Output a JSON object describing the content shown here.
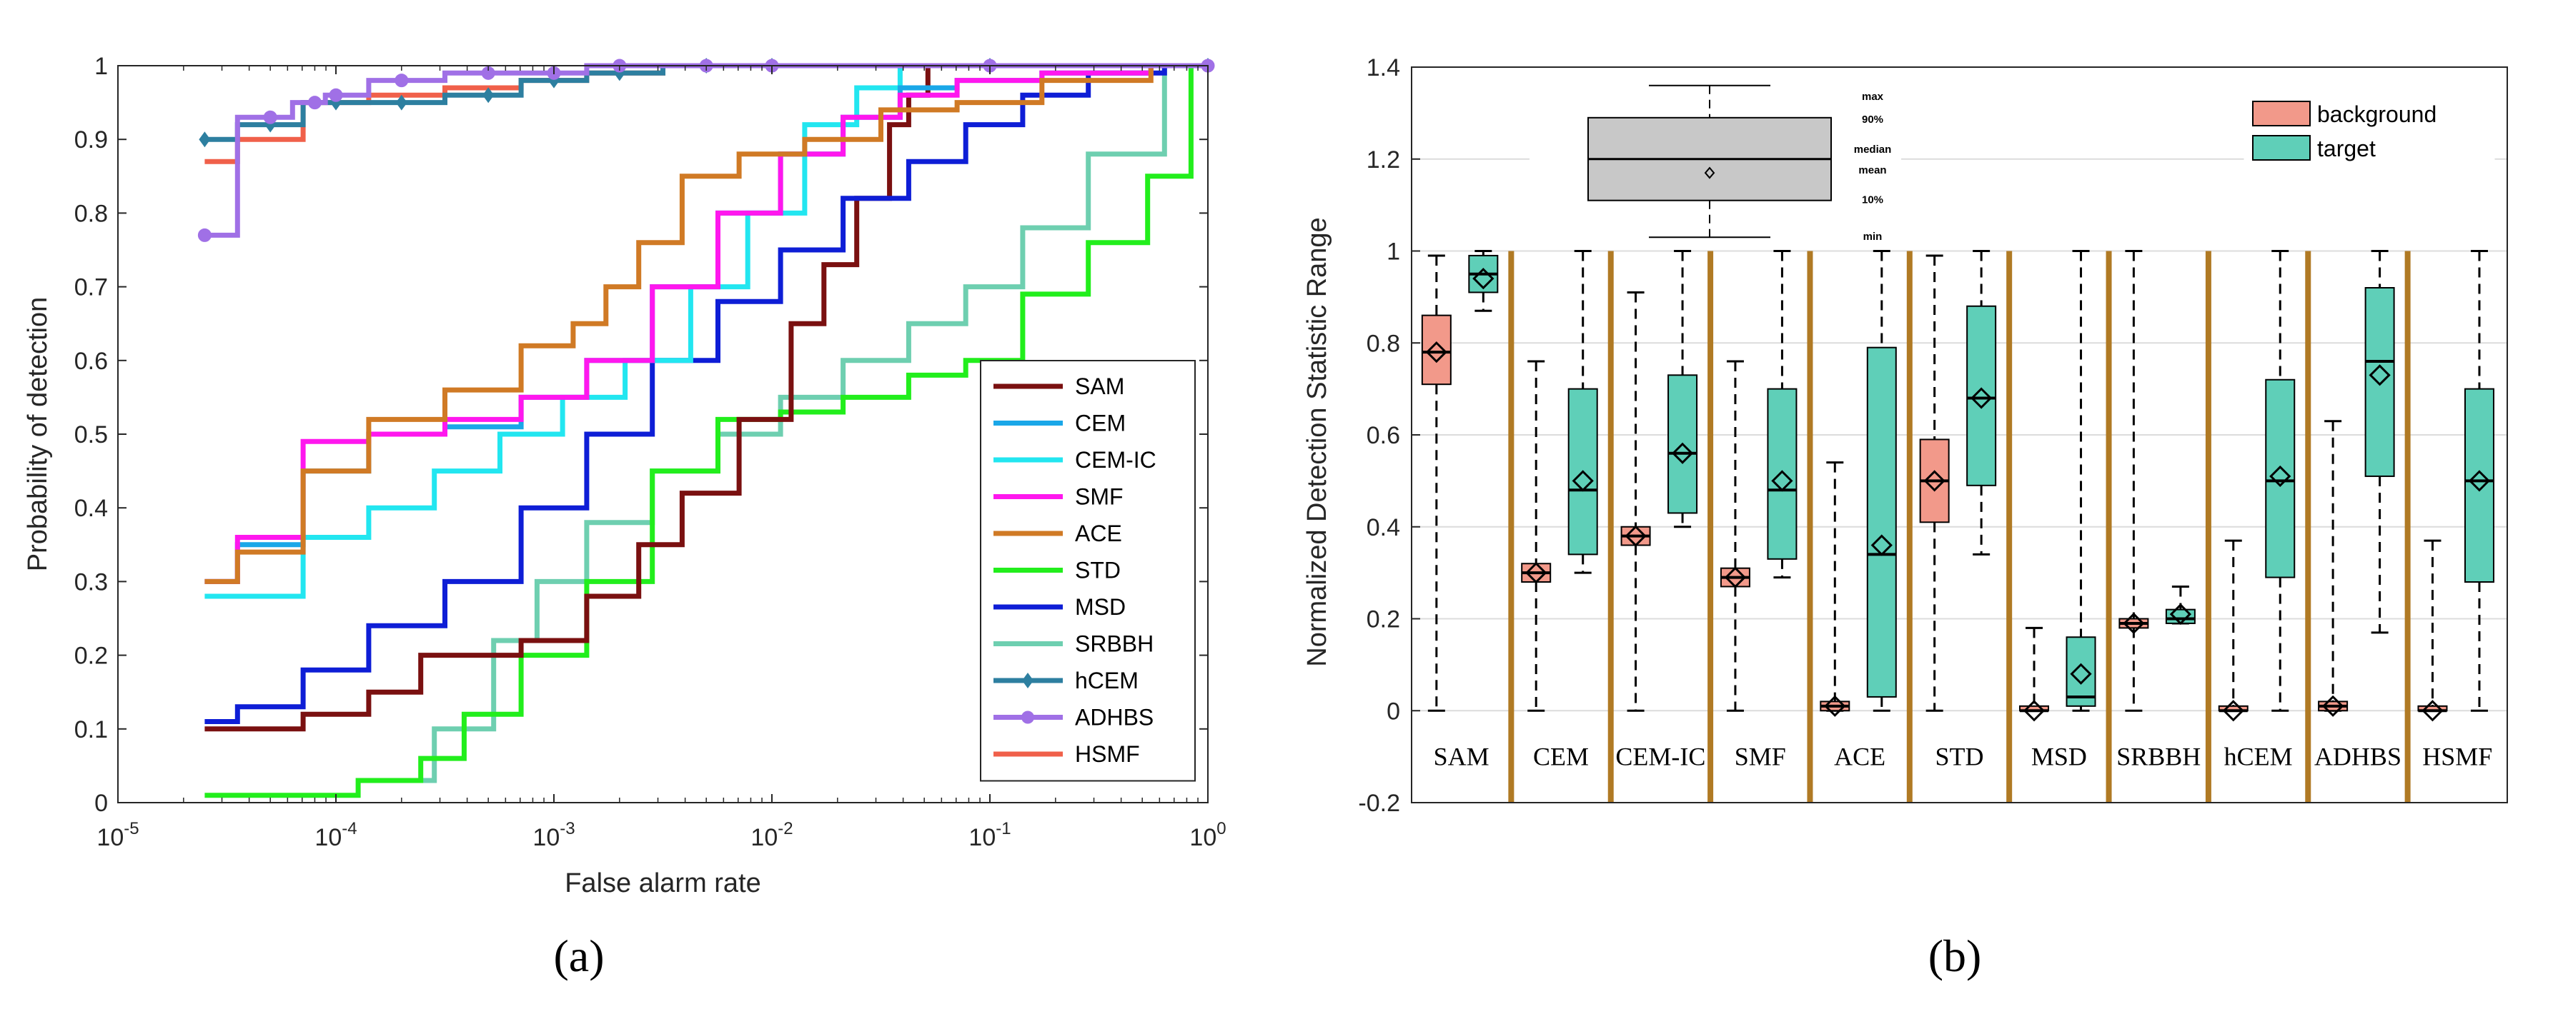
{
  "panel_labels": [
    "(a)",
    "(b)"
  ],
  "chart_data": [
    {
      "type": "line",
      "panel": "(a)",
      "xscale": "log",
      "xlabel": "False alarm rate",
      "ylabel": "Probability of detection",
      "xlim": [
        1e-05,
        1
      ],
      "ylim": [
        0,
        1
      ],
      "x_ticks": [
        1e-05,
        0.0001,
        0.001,
        0.01,
        0.1,
        1
      ],
      "x_tick_bases": [
        "10",
        "10",
        "10",
        "10",
        "10",
        "10"
      ],
      "x_tick_exps": [
        "-5",
        "-4",
        "-3",
        "-2",
        "-1",
        "0"
      ],
      "y_ticks": [
        0,
        0.1,
        0.2,
        0.3,
        0.4,
        0.5,
        0.6,
        0.7,
        0.8,
        0.9,
        1
      ],
      "y_tick_labels": [
        "0",
        "0.1",
        "0.2",
        "0.3",
        "0.4",
        "0.5",
        "0.6",
        "0.7",
        "0.8",
        "0.9",
        "1"
      ],
      "legend_position": "bottom-right",
      "series": [
        {
          "name": "SAM",
          "color": "#7a1010",
          "marker": "none",
          "x": [
            2.5e-05,
            5e-05,
            0.0001,
            0.0002,
            0.0003,
            0.0005,
            0.001,
            0.002,
            0.003,
            0.005,
            0.01,
            0.015,
            0.02,
            0.03,
            0.04,
            0.045,
            0.06,
            1
          ],
          "y": [
            0.1,
            0.1,
            0.12,
            0.15,
            0.2,
            0.2,
            0.22,
            0.28,
            0.35,
            0.42,
            0.52,
            0.65,
            0.73,
            0.82,
            0.92,
            0.96,
            1.0,
            1.0
          ]
        },
        {
          "name": "CEM",
          "color": "#1aa7e8",
          "marker": "none",
          "x": [
            2.5e-05,
            5e-05,
            0.0001,
            0.0002,
            0.0005,
            0.001,
            0.002,
            0.004,
            0.008,
            0.015,
            0.03,
            0.05,
            0.1,
            0.3,
            1
          ],
          "y": [
            0.3,
            0.35,
            0.45,
            0.5,
            0.51,
            0.55,
            0.6,
            0.7,
            0.8,
            0.88,
            0.93,
            0.97,
            0.98,
            0.99,
            1.0
          ]
        },
        {
          "name": "CEM-IC",
          "color": "#22e6f0",
          "marker": "none",
          "x": [
            2.5e-05,
            5e-05,
            0.0001,
            0.0002,
            0.0004,
            0.0008,
            0.0015,
            0.003,
            0.006,
            0.01,
            0.02,
            0.03,
            0.05,
            0.1,
            0.3,
            1
          ],
          "y": [
            0.28,
            0.28,
            0.36,
            0.4,
            0.45,
            0.5,
            0.55,
            0.6,
            0.7,
            0.8,
            0.92,
            0.97,
            1.0,
            1.0,
            1.0,
            1.0
          ]
        },
        {
          "name": "SMF",
          "color": "#ff17ee",
          "marker": "none",
          "x": [
            2.5e-05,
            5e-05,
            0.0001,
            0.0002,
            0.0005,
            0.001,
            0.002,
            0.004,
            0.008,
            0.015,
            0.03,
            0.05,
            0.1,
            0.3,
            1
          ],
          "y": [
            0.3,
            0.36,
            0.49,
            0.5,
            0.52,
            0.55,
            0.6,
            0.7,
            0.8,
            0.88,
            0.93,
            0.96,
            0.98,
            0.99,
            1.0
          ]
        },
        {
          "name": "ACE",
          "color": "#d07a25",
          "marker": "none",
          "x": [
            2.5e-05,
            5e-05,
            0.0001,
            0.0002,
            0.0005,
            0.001,
            0.0015,
            0.002,
            0.003,
            0.005,
            0.01,
            0.02,
            0.05,
            0.1,
            0.3,
            1
          ],
          "y": [
            0.3,
            0.34,
            0.45,
            0.52,
            0.56,
            0.62,
            0.65,
            0.7,
            0.76,
            0.85,
            0.88,
            0.9,
            0.94,
            0.95,
            0.98,
            1.0
          ]
        },
        {
          "name": "STD",
          "color": "#22ee1c",
          "marker": "none",
          "x": [
            2.5e-05,
            8e-05,
            0.0002,
            0.0003,
            0.0005,
            0.001,
            0.002,
            0.004,
            0.008,
            0.015,
            0.03,
            0.06,
            0.1,
            0.2,
            0.4,
            0.7,
            1
          ],
          "y": [
            0.01,
            0.01,
            0.03,
            0.06,
            0.12,
            0.2,
            0.3,
            0.45,
            0.52,
            0.53,
            0.55,
            0.58,
            0.6,
            0.69,
            0.76,
            0.85,
            1.0
          ]
        },
        {
          "name": "MSD",
          "color": "#0e1ed6",
          "marker": "none",
          "x": [
            2.5e-05,
            5e-05,
            0.0001,
            0.0002,
            0.0005,
            0.001,
            0.002,
            0.004,
            0.008,
            0.015,
            0.03,
            0.06,
            0.1,
            0.2,
            0.4,
            1
          ],
          "y": [
            0.11,
            0.13,
            0.18,
            0.24,
            0.3,
            0.4,
            0.5,
            0.6,
            0.68,
            0.75,
            0.82,
            0.87,
            0.92,
            0.96,
            0.99,
            1.0
          ]
        },
        {
          "name": "SRBBH",
          "color": "#6ecfb0",
          "marker": "none",
          "x": [
            0.0002,
            0.0004,
            0.0007,
            0.001,
            0.002,
            0.004,
            0.008,
            0.015,
            0.03,
            0.06,
            0.1,
            0.2,
            0.4,
            1
          ],
          "y": [
            0.03,
            0.1,
            0.22,
            0.3,
            0.38,
            0.45,
            0.5,
            0.55,
            0.6,
            0.65,
            0.7,
            0.78,
            0.88,
            1.0
          ]
        },
        {
          "name": "hCEM",
          "color": "#2d7fa0",
          "marker": "diamond",
          "x": [
            2.5e-05,
            5e-05,
            0.0001,
            0.0002,
            0.0005,
            0.001,
            0.002,
            0.005,
            0.01,
            0.1,
            1
          ],
          "y": [
            0.9,
            0.92,
            0.95,
            0.95,
            0.96,
            0.98,
            0.99,
            1.0,
            1.0,
            1.0,
            1.0
          ]
        },
        {
          "name": "ADHBS",
          "color": "#a070e6",
          "marker": "circle",
          "x": [
            2.5e-05,
            5e-05,
            8e-05,
            0.0001,
            0.0002,
            0.0005,
            0.001,
            0.002,
            0.005,
            0.01,
            0.1,
            1
          ],
          "y": [
            0.77,
            0.93,
            0.95,
            0.96,
            0.98,
            0.99,
            0.99,
            1.0,
            1.0,
            1.0,
            1.0,
            1.0
          ]
        },
        {
          "name": "HSMF",
          "color": "#f0604a",
          "marker": "none",
          "x": [
            2.5e-05,
            5e-05,
            0.0001,
            0.0002,
            0.0005,
            0.001,
            0.002,
            0.005,
            0.01,
            0.1,
            1
          ],
          "y": [
            0.87,
            0.9,
            0.95,
            0.96,
            0.97,
            0.98,
            0.99,
            1.0,
            1.0,
            1.0,
            1.0
          ]
        }
      ]
    },
    {
      "type": "box",
      "panel": "(b)",
      "ylabel": "Normalized Detection Statistic Range",
      "ylim": [
        -0.2,
        1.4
      ],
      "y_ticks": [
        -0.2,
        0,
        0.2,
        0.4,
        0.6,
        0.8,
        1,
        1.2,
        1.4
      ],
      "y_tick_labels": [
        "-0.2",
        "0",
        "0.2",
        "0.4",
        "0.6",
        "0.8",
        "1",
        "1.2",
        "1.4"
      ],
      "grid": true,
      "legend_position": "top-right",
      "legend": [
        {
          "name": "background",
          "color": "#f2998a"
        },
        {
          "name": "target",
          "color": "#5fcfb8"
        }
      ],
      "key_labels": [
        "max",
        "90%",
        "median",
        "mean",
        "10%",
        "min"
      ],
      "key_stats": {
        "min": 1.03,
        "q10": 1.11,
        "median": 1.2,
        "mean": 1.17,
        "q90": 1.29,
        "max": 1.36
      },
      "categories": [
        "SAM",
        "CEM",
        "CEM-IC",
        "SMF",
        "ACE",
        "STD",
        "MSD",
        "SRBBH",
        "hCEM",
        "ADHBS",
        "HSMF"
      ],
      "series": [
        {
          "name": "background",
          "color": "#f2998a",
          "stats": [
            {
              "min": 0.0,
              "q10": 0.71,
              "median": 0.78,
              "mean": 0.78,
              "q90": 0.86,
              "max": 0.99
            },
            {
              "min": 0.0,
              "q10": 0.28,
              "median": 0.3,
              "mean": 0.3,
              "q90": 0.32,
              "max": 0.76
            },
            {
              "min": 0.0,
              "q10": 0.36,
              "median": 0.38,
              "mean": 0.38,
              "q90": 0.4,
              "max": 0.91
            },
            {
              "min": 0.0,
              "q10": 0.27,
              "median": 0.29,
              "mean": 0.29,
              "q90": 0.31,
              "max": 0.76
            },
            {
              "min": 0.0,
              "q10": 0.0,
              "median": 0.01,
              "mean": 0.01,
              "q90": 0.02,
              "max": 0.54
            },
            {
              "min": 0.0,
              "q10": 0.41,
              "median": 0.5,
              "mean": 0.5,
              "q90": 0.59,
              "max": 0.99
            },
            {
              "min": 0.0,
              "q10": 0.0,
              "median": 0.0,
              "mean": 0.0,
              "q90": 0.01,
              "max": 0.18
            },
            {
              "min": 0.0,
              "q10": 0.18,
              "median": 0.19,
              "mean": 0.19,
              "q90": 0.2,
              "max": 1.0
            },
            {
              "min": 0.0,
              "q10": 0.0,
              "median": 0.0,
              "mean": 0.0,
              "q90": 0.01,
              "max": 0.37
            },
            {
              "min": 0.0,
              "q10": 0.0,
              "median": 0.01,
              "mean": 0.01,
              "q90": 0.02,
              "max": 0.63
            },
            {
              "min": 0.0,
              "q10": 0.0,
              "median": 0.0,
              "mean": 0.0,
              "q90": 0.01,
              "max": 0.37
            }
          ]
        },
        {
          "name": "target",
          "color": "#5fcfb8",
          "stats": [
            {
              "min": 0.87,
              "q10": 0.91,
              "median": 0.95,
              "mean": 0.94,
              "q90": 0.99,
              "max": 1.0
            },
            {
              "min": 0.3,
              "q10": 0.34,
              "median": 0.48,
              "mean": 0.5,
              "q90": 0.7,
              "max": 1.0
            },
            {
              "min": 0.4,
              "q10": 0.43,
              "median": 0.56,
              "mean": 0.56,
              "q90": 0.73,
              "max": 1.0
            },
            {
              "min": 0.29,
              "q10": 0.33,
              "median": 0.48,
              "mean": 0.5,
              "q90": 0.7,
              "max": 1.0
            },
            {
              "min": 0.0,
              "q10": 0.03,
              "median": 0.34,
              "mean": 0.36,
              "q90": 0.79,
              "max": 1.0
            },
            {
              "min": 0.34,
              "q10": 0.49,
              "median": 0.68,
              "mean": 0.68,
              "q90": 0.88,
              "max": 1.0
            },
            {
              "min": 0.0,
              "q10": 0.01,
              "median": 0.03,
              "mean": 0.08,
              "q90": 0.16,
              "max": 1.0
            },
            {
              "min": 0.19,
              "q10": 0.19,
              "median": 0.2,
              "mean": 0.21,
              "q90": 0.22,
              "max": 0.27
            },
            {
              "min": 0.0,
              "q10": 0.29,
              "median": 0.5,
              "mean": 0.51,
              "q90": 0.72,
              "max": 1.0
            },
            {
              "min": 0.17,
              "q10": 0.51,
              "median": 0.76,
              "mean": 0.73,
              "q90": 0.92,
              "max": 1.0
            },
            {
              "min": 0.0,
              "q10": 0.28,
              "median": 0.5,
              "mean": 0.5,
              "q90": 0.7,
              "max": 1.0
            }
          ]
        }
      ]
    }
  ]
}
